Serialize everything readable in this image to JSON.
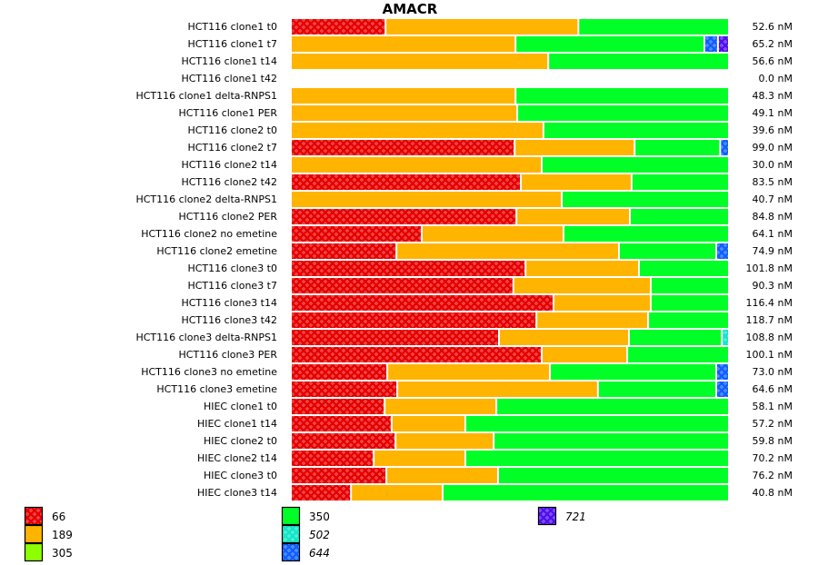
{
  "chart_data": {
    "type": "bar",
    "orientation": "horizontal",
    "stacked": "percent",
    "title": "AMACR",
    "xlabel": "",
    "ylabel": "",
    "legend_position": "bottom",
    "grid": false,
    "value_unit": "nM",
    "legend": [
      {
        "key": "66",
        "label": "66",
        "color": "#e60000",
        "hatched": true,
        "italic": false
      },
      {
        "key": "189",
        "label": "189",
        "color": "#ffb400",
        "hatched": false,
        "italic": false
      },
      {
        "key": "305",
        "label": "305",
        "color": "#8cff00",
        "hatched": false,
        "italic": false
      },
      {
        "key": "350",
        "label": "350",
        "color": "#00ff26",
        "hatched": false,
        "italic": false
      },
      {
        "key": "502",
        "label": "502",
        "color": "#11e6c8",
        "hatched": true,
        "italic": true
      },
      {
        "key": "644",
        "label": "644",
        "color": "#1060ff",
        "hatched": true,
        "italic": true
      },
      {
        "key": "721",
        "label": "721",
        "color": "#5010ee",
        "hatched": true,
        "italic": true
      }
    ],
    "rows": [
      {
        "label": "HCT116 clone1 t0",
        "total": "52.6 nM",
        "segments": [
          [
            "66",
            0.217
          ],
          [
            "189",
            0.442
          ],
          [
            "350",
            0.341
          ]
        ]
      },
      {
        "label": "HCT116 clone1 t7",
        "total": "65.2 nM",
        "segments": [
          [
            "189",
            0.515
          ],
          [
            "350",
            0.433
          ],
          [
            "644",
            0.031
          ],
          [
            "721",
            0.021
          ]
        ]
      },
      {
        "label": "HCT116 clone1 t14",
        "total": "56.6 nM",
        "segments": [
          [
            "189",
            0.59
          ],
          [
            "350",
            0.41
          ]
        ]
      },
      {
        "label": "HCT116 clone1 t42",
        "total": "0.0 nM",
        "segments": []
      },
      {
        "label": "HCT116 clone1 delta-RNPS1",
        "total": "48.3 nM",
        "segments": [
          [
            "189",
            0.515
          ],
          [
            "350",
            0.485
          ]
        ]
      },
      {
        "label": "HCT116 clone1 PER",
        "total": "49.1 nM",
        "segments": [
          [
            "189",
            0.519
          ],
          [
            "350",
            0.481
          ]
        ]
      },
      {
        "label": "HCT116 clone2 t0",
        "total": "39.6 nM",
        "segments": [
          [
            "189",
            0.579
          ],
          [
            "350",
            0.421
          ]
        ]
      },
      {
        "label": "HCT116 clone2 t7",
        "total": "99.0 nM",
        "segments": [
          [
            "66",
            0.513
          ],
          [
            "189",
            0.275
          ],
          [
            "350",
            0.196
          ],
          [
            "644",
            0.016
          ]
        ]
      },
      {
        "label": "HCT116 clone2 t14",
        "total": "30.0 nM",
        "segments": [
          [
            "189",
            0.575
          ],
          [
            "350",
            0.425
          ]
        ]
      },
      {
        "label": "HCT116 clone2 t42",
        "total": "83.5 nM",
        "segments": [
          [
            "66",
            0.527
          ],
          [
            "189",
            0.254
          ],
          [
            "350",
            0.219
          ]
        ]
      },
      {
        "label": "HCT116 clone2 delta-RNPS1",
        "total": "40.7 nM",
        "segments": [
          [
            "189",
            0.621
          ],
          [
            "350",
            0.379
          ]
        ]
      },
      {
        "label": "HCT116 clone2 PER",
        "total": "84.8 nM",
        "segments": [
          [
            "66",
            0.517
          ],
          [
            "189",
            0.26
          ],
          [
            "350",
            0.223
          ]
        ]
      },
      {
        "label": "HCT116 clone2 no emetine",
        "total": "64.1 nM",
        "segments": [
          [
            "66",
            0.3
          ],
          [
            "189",
            0.325
          ],
          [
            "350",
            0.375
          ]
        ]
      },
      {
        "label": "HCT116 clone2 emetine",
        "total": "74.9 nM",
        "segments": [
          [
            "66",
            0.242
          ],
          [
            "189",
            0.51
          ],
          [
            "350",
            0.223
          ],
          [
            "644",
            0.025
          ]
        ]
      },
      {
        "label": "HCT116 clone3 t0",
        "total": "101.8 nM",
        "segments": [
          [
            "66",
            0.538
          ],
          [
            "189",
            0.26
          ],
          [
            "350",
            0.202
          ]
        ]
      },
      {
        "label": "HCT116 clone3 t7",
        "total": "90.3 nM",
        "segments": [
          [
            "66",
            0.51
          ],
          [
            "189",
            0.315
          ],
          [
            "350",
            0.175
          ]
        ]
      },
      {
        "label": "HCT116 clone3 t14",
        "total": "116.4 nM",
        "segments": [
          [
            "66",
            0.602
          ],
          [
            "189",
            0.223
          ],
          [
            "350",
            0.175
          ]
        ]
      },
      {
        "label": "HCT116 clone3 t42",
        "total": "118.7 nM",
        "segments": [
          [
            "66",
            0.563
          ],
          [
            "189",
            0.256
          ],
          [
            "350",
            0.181
          ]
        ]
      },
      {
        "label": "HCT116 clone3 delta-RNPS1",
        "total": "108.8 nM",
        "segments": [
          [
            "66",
            0.477
          ],
          [
            "189",
            0.298
          ],
          [
            "350",
            0.213
          ],
          [
            "502",
            0.012
          ]
        ]
      },
      {
        "label": "HCT116 clone3 PER",
        "total": "100.1 nM",
        "segments": [
          [
            "66",
            0.575
          ],
          [
            "189",
            0.196
          ],
          [
            "350",
            0.229
          ]
        ]
      },
      {
        "label": "HCT116 clone3 no emetine",
        "total": "73.0 nM",
        "segments": [
          [
            "66",
            0.221
          ],
          [
            "189",
            0.373
          ],
          [
            "350",
            0.381
          ],
          [
            "644",
            0.025
          ]
        ]
      },
      {
        "label": "HCT116 clone3 emetine",
        "total": "64.6 nM",
        "segments": [
          [
            "66",
            0.244
          ],
          [
            "189",
            0.46
          ],
          [
            "350",
            0.271
          ],
          [
            "644",
            0.025
          ]
        ]
      },
      {
        "label": "HIEC clone1 t0",
        "total": "58.1 nM",
        "segments": [
          [
            "66",
            0.215
          ],
          [
            "189",
            0.256
          ],
          [
            "350",
            0.529
          ]
        ]
      },
      {
        "label": "HIEC clone1 t14",
        "total": "57.2 nM",
        "segments": [
          [
            "66",
            0.231
          ],
          [
            "189",
            0.169
          ],
          [
            "350",
            0.6
          ]
        ]
      },
      {
        "label": "HIEC clone2 t0",
        "total": "59.8 nM",
        "segments": [
          [
            "66",
            0.24
          ],
          [
            "189",
            0.225
          ],
          [
            "350",
            0.535
          ]
        ]
      },
      {
        "label": "HIEC clone2 t14",
        "total": "70.2 nM",
        "segments": [
          [
            "66",
            0.19
          ],
          [
            "189",
            0.21
          ],
          [
            "350",
            0.6
          ]
        ]
      },
      {
        "label": "HIEC clone3 t0",
        "total": "76.2 nM",
        "segments": [
          [
            "66",
            0.219
          ],
          [
            "189",
            0.256
          ],
          [
            "350",
            0.525
          ]
        ]
      },
      {
        "label": "HIEC clone3 t14",
        "total": "40.8 nM",
        "segments": [
          [
            "66",
            0.138
          ],
          [
            "189",
            0.21
          ],
          [
            "350",
            0.652
          ]
        ]
      }
    ]
  }
}
